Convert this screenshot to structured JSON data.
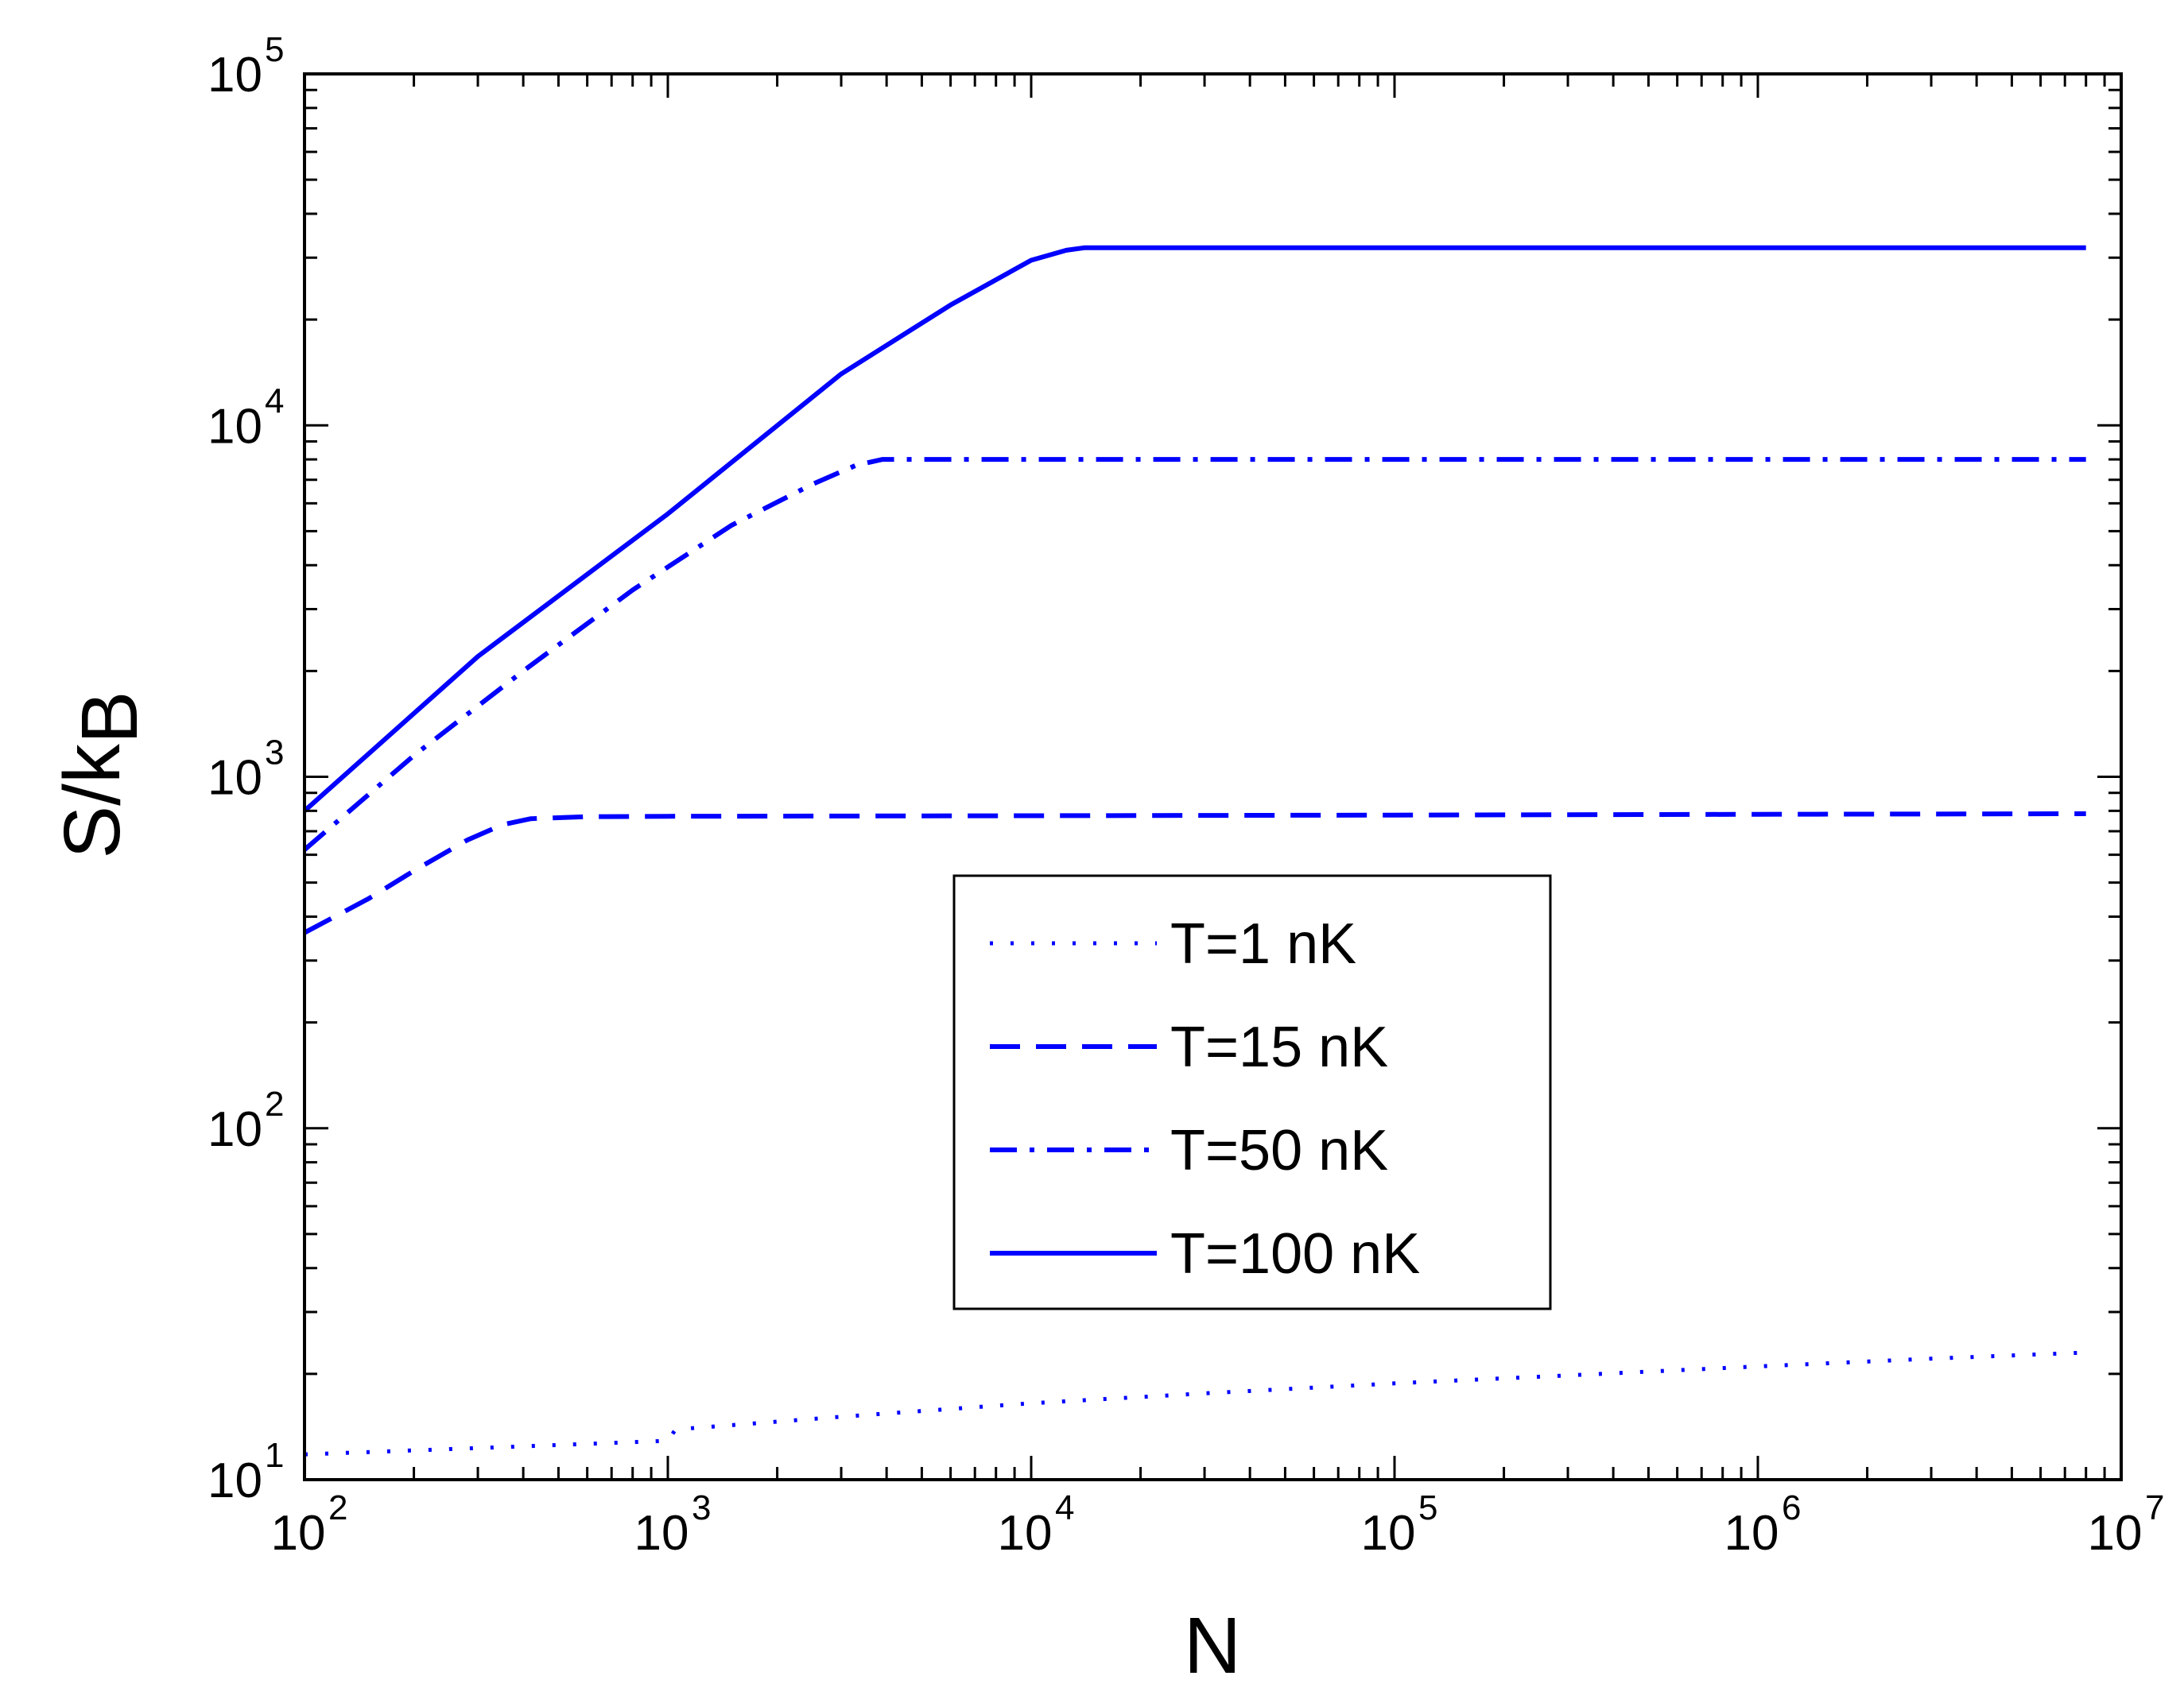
{
  "chart_data": {
    "type": "line",
    "xscale": "log",
    "yscale": "log",
    "xlabel": "N",
    "ylabel": "S/k_B",
    "ylabel_main": "S/k",
    "ylabel_sub": "B",
    "xlim": [
      100,
      10000000
    ],
    "ylim": [
      10,
      100000
    ],
    "x_ticks": [
      {
        "base": "10",
        "exp": "2",
        "value": 100
      },
      {
        "base": "10",
        "exp": "3",
        "value": 1000
      },
      {
        "base": "10",
        "exp": "4",
        "value": 10000
      },
      {
        "base": "10",
        "exp": "5",
        "value": 100000
      },
      {
        "base": "10",
        "exp": "6",
        "value": 1000000
      },
      {
        "base": "10",
        "exp": "7",
        "value": 10000000
      }
    ],
    "y_ticks": [
      {
        "base": "10",
        "exp": "1",
        "value": 10
      },
      {
        "base": "10",
        "exp": "2",
        "value": 100
      },
      {
        "base": "10",
        "exp": "3",
        "value": 1000
      },
      {
        "base": "10",
        "exp": "4",
        "value": 10000
      },
      {
        "base": "10",
        "exp": "5",
        "value": 100000
      }
    ],
    "legend_position": "center",
    "series": [
      {
        "name": "T=1 nK",
        "style": "dotted",
        "color": "#0000ff",
        "points": [
          [
            100,
            11.8
          ],
          [
            300,
            12.3
          ],
          [
            1000,
            12.9
          ],
          [
            1050,
            13.9
          ],
          [
            3000,
            15.1
          ],
          [
            10000,
            16.5
          ],
          [
            30000,
            17.6
          ],
          [
            100000,
            18.8
          ],
          [
            300000,
            19.8
          ],
          [
            1000000,
            21.0
          ],
          [
            3000000,
            22.1
          ],
          [
            8000000,
            23.0
          ]
        ]
      },
      {
        "name": "T=15 nK",
        "style": "dashed",
        "color": "#0000ff",
        "points": [
          [
            100,
            360
          ],
          [
            150,
            450
          ],
          [
            200,
            540
          ],
          [
            280,
            660
          ],
          [
            350,
            730
          ],
          [
            420,
            760
          ],
          [
            600,
            770
          ],
          [
            1000,
            772
          ],
          [
            10000,
            775
          ],
          [
            100000,
            778
          ],
          [
            1000000,
            782
          ],
          [
            8000000,
            785
          ]
        ]
      },
      {
        "name": "T=50 nK",
        "style": "dashdot",
        "color": "#0000ff",
        "points": [
          [
            100,
            620
          ],
          [
            200,
            1150
          ],
          [
            400,
            2000
          ],
          [
            800,
            3400
          ],
          [
            1500,
            5200
          ],
          [
            2500,
            6800
          ],
          [
            3300,
            7700
          ],
          [
            3900,
            8000
          ],
          [
            10000,
            8000
          ],
          [
            100000,
            8000
          ],
          [
            1000000,
            8000
          ],
          [
            8000000,
            8000
          ]
        ]
      },
      {
        "name": "T=100 nK",
        "style": "solid",
        "color": "#0000ff",
        "points": [
          [
            100,
            800
          ],
          [
            300,
            2200
          ],
          [
            1000,
            5600
          ],
          [
            3000,
            14000
          ],
          [
            6000,
            22000
          ],
          [
            10000,
            29500
          ],
          [
            12500,
            31500
          ],
          [
            14000,
            32000
          ],
          [
            100000,
            32000
          ],
          [
            1000000,
            32000
          ],
          [
            8000000,
            32000
          ]
        ]
      }
    ]
  }
}
